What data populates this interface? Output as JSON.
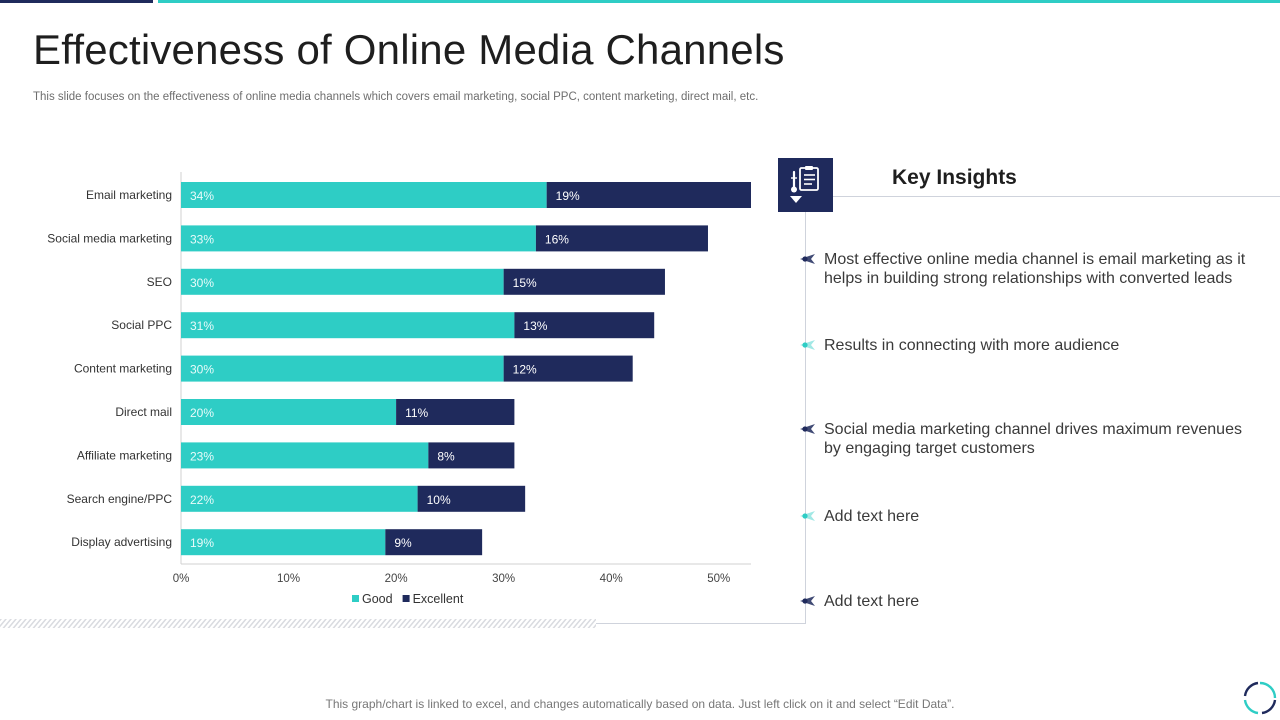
{
  "header": {
    "title": "Effectiveness of Online Media Channels",
    "subtitle": "This slide focuses on the effectiveness of online media channels which covers email marketing, social PPC, content marketing, direct mail, etc."
  },
  "chart_data": {
    "type": "bar",
    "orientation": "horizontal",
    "stacked": true,
    "categories": [
      "Email marketing",
      "Social media marketing",
      "SEO",
      "Social PPC",
      "Content marketing",
      "Direct mail",
      "Affiliate marketing",
      "Search engine/PPC",
      "Display advertising"
    ],
    "series": [
      {
        "name": "Good",
        "values": [
          34,
          33,
          30,
          31,
          30,
          20,
          23,
          22,
          19
        ],
        "color": "#2ecdc5",
        "label_color": "#e8fbfa"
      },
      {
        "name": "Excellent",
        "values": [
          19,
          16,
          15,
          13,
          12,
          11,
          8,
          10,
          9
        ],
        "color": "#1f2a5c",
        "label_color": "#ffffff"
      }
    ],
    "xticks": [
      "0%",
      "10%",
      "20%",
      "30%",
      "40%",
      "50%"
    ],
    "xlim": [
      0,
      53
    ],
    "value_suffix": "%",
    "legend_position": "bottom",
    "grid": false
  },
  "insights": {
    "title": "Key Insights",
    "items": [
      {
        "text": "Most effective online media channel is email marketing as it helps in building strong relationships with converted leads",
        "marker": "navy"
      },
      {
        "text": "Results in connecting with more audience",
        "marker": "teal"
      },
      {
        "text": "Social media marketing channel drives maximum revenues by engaging target customers",
        "marker": "navy"
      },
      {
        "text": "Add text here",
        "marker": "teal"
      },
      {
        "text": "Add text here",
        "marker": "navy"
      }
    ]
  },
  "colors": {
    "navy": "#1f2a5c",
    "teal": "#2ecdc5"
  },
  "icons": {
    "insight_box": "clipboard-thermometer-icon",
    "corner": "refresh-ring-icon"
  },
  "footer": {
    "note": "This graph/chart is linked to excel, and changes automatically based on data. Just left click on it and select “Edit Data”."
  }
}
